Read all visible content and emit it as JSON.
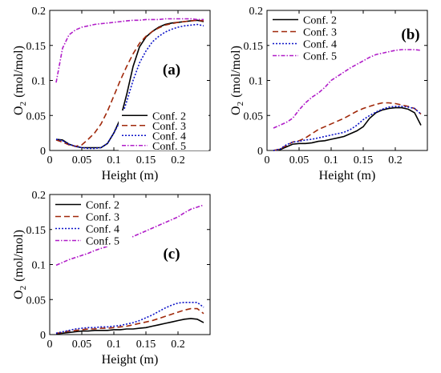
{
  "styles": {
    "Conf. 2": {
      "color": "#000000",
      "dash": ""
    },
    "Conf. 3": {
      "color": "#a0280a",
      "dash": "7,4"
    },
    "Conf. 4": {
      "color": "#0b12c8",
      "dash": "2,2"
    },
    "Conf. 5": {
      "color": "#b01cc8",
      "dash": "5,2,1.5,2"
    }
  },
  "chart_data": [
    {
      "type": "line",
      "panel_label": "(a)",
      "xlabel": "Height (m)",
      "ylabel_main": "O",
      "ylabel_sub": "2",
      "ylabel_unit": "(mol/mol)",
      "xlim": [
        0,
        0.25
      ],
      "ylim": [
        0,
        0.2
      ],
      "xticks": [
        "0",
        "0.05",
        "0.1",
        "0.15",
        "0.2"
      ],
      "yticks": [
        "0",
        "0.05",
        "0.1",
        "0.15",
        "0.2"
      ],
      "legend": "lower-right",
      "series": [
        {
          "name": "Conf. 2",
          "x": [
            0.01,
            0.02,
            0.03,
            0.04,
            0.05,
            0.06,
            0.07,
            0.08,
            0.09,
            0.1,
            0.11,
            0.12,
            0.13,
            0.14,
            0.15,
            0.16,
            0.17,
            0.18,
            0.19,
            0.2,
            0.21,
            0.22,
            0.23,
            0.24
          ],
          "y": [
            0.016,
            0.015,
            0.009,
            0.006,
            0.004,
            0.004,
            0.004,
            0.004,
            0.01,
            0.025,
            0.045,
            0.08,
            0.12,
            0.148,
            0.162,
            0.17,
            0.176,
            0.18,
            0.182,
            0.183,
            0.184,
            0.185,
            0.186,
            0.184
          ]
        },
        {
          "name": "Conf. 3",
          "x": [
            0.01,
            0.02,
            0.03,
            0.04,
            0.05,
            0.06,
            0.07,
            0.08,
            0.09,
            0.1,
            0.11,
            0.12,
            0.13,
            0.14,
            0.15,
            0.16,
            0.17,
            0.18,
            0.19,
            0.2,
            0.21,
            0.22,
            0.23,
            0.24
          ],
          "y": [
            0.015,
            0.012,
            0.008,
            0.006,
            0.008,
            0.016,
            0.025,
            0.038,
            0.056,
            0.078,
            0.1,
            0.12,
            0.138,
            0.153,
            0.163,
            0.17,
            0.175,
            0.179,
            0.181,
            0.183,
            0.184,
            0.185,
            0.186,
            0.185
          ]
        },
        {
          "name": "Conf. 4",
          "x": [
            0.01,
            0.02,
            0.03,
            0.04,
            0.05,
            0.06,
            0.07,
            0.08,
            0.09,
            0.1,
            0.11,
            0.12,
            0.13,
            0.14,
            0.15,
            0.16,
            0.17,
            0.18,
            0.19,
            0.2,
            0.21,
            0.22,
            0.23,
            0.24
          ],
          "y": [
            0.016,
            0.014,
            0.009,
            0.006,
            0.004,
            0.003,
            0.003,
            0.004,
            0.01,
            0.025,
            0.042,
            0.07,
            0.1,
            0.125,
            0.142,
            0.155,
            0.163,
            0.169,
            0.173,
            0.176,
            0.178,
            0.179,
            0.18,
            0.178
          ]
        },
        {
          "name": "Conf. 5",
          "x": [
            0.01,
            0.02,
            0.03,
            0.04,
            0.05,
            0.06,
            0.07,
            0.08,
            0.09,
            0.1,
            0.11,
            0.12,
            0.13,
            0.14,
            0.15,
            0.16,
            0.17,
            0.18,
            0.19,
            0.2,
            0.21,
            0.22,
            0.23,
            0.24
          ],
          "y": [
            0.097,
            0.146,
            0.165,
            0.172,
            0.176,
            0.178,
            0.18,
            0.181,
            0.182,
            0.183,
            0.184,
            0.185,
            0.186,
            0.186,
            0.187,
            0.187,
            0.187,
            0.188,
            0.188,
            0.188,
            0.188,
            0.188,
            0.187,
            0.187
          ]
        }
      ]
    },
    {
      "type": "line",
      "panel_label": "(b)",
      "xlabel": "Height (m)",
      "ylabel_main": "O",
      "ylabel_sub": "2",
      "ylabel_unit": "(mol/mol)",
      "xlim": [
        0,
        0.25
      ],
      "ylim": [
        0,
        0.2
      ],
      "xticks": [
        "0",
        "0.05",
        "0.1",
        "0.15",
        "0.2"
      ],
      "yticks": [
        "0",
        "0.05",
        "0.1",
        "0.15",
        "0.2"
      ],
      "legend": "top-left",
      "series": [
        {
          "name": "Conf. 2",
          "x": [
            0.01,
            0.02,
            0.03,
            0.04,
            0.05,
            0.06,
            0.07,
            0.08,
            0.09,
            0.1,
            0.11,
            0.12,
            0.13,
            0.14,
            0.15,
            0.16,
            0.17,
            0.18,
            0.19,
            0.2,
            0.21,
            0.22,
            0.23,
            0.24
          ],
          "y": [
            0.0,
            0.001,
            0.005,
            0.009,
            0.01,
            0.01,
            0.011,
            0.013,
            0.014,
            0.016,
            0.018,
            0.02,
            0.024,
            0.028,
            0.034,
            0.046,
            0.054,
            0.058,
            0.06,
            0.061,
            0.061,
            0.059,
            0.054,
            0.036
          ]
        },
        {
          "name": "Conf. 3",
          "x": [
            0.01,
            0.02,
            0.03,
            0.04,
            0.05,
            0.06,
            0.07,
            0.08,
            0.09,
            0.1,
            0.11,
            0.12,
            0.13,
            0.14,
            0.15,
            0.16,
            0.17,
            0.18,
            0.19,
            0.2,
            0.21,
            0.22,
            0.23,
            0.24
          ],
          "y": [
            0.0,
            0.002,
            0.007,
            0.012,
            0.014,
            0.018,
            0.024,
            0.03,
            0.034,
            0.038,
            0.042,
            0.046,
            0.051,
            0.056,
            0.06,
            0.063,
            0.066,
            0.068,
            0.068,
            0.067,
            0.065,
            0.063,
            0.06,
            0.052
          ]
        },
        {
          "name": "Conf. 4",
          "x": [
            0.01,
            0.02,
            0.03,
            0.04,
            0.05,
            0.06,
            0.07,
            0.08,
            0.09,
            0.1,
            0.11,
            0.12,
            0.13,
            0.14,
            0.15,
            0.16,
            0.17,
            0.18,
            0.19,
            0.2,
            0.21,
            0.22,
            0.23,
            0.24
          ],
          "y": [
            0.0,
            0.002,
            0.008,
            0.012,
            0.013,
            0.015,
            0.016,
            0.018,
            0.02,
            0.022,
            0.024,
            0.026,
            0.03,
            0.036,
            0.044,
            0.05,
            0.055,
            0.059,
            0.062,
            0.063,
            0.063,
            0.062,
            0.06,
            0.052
          ]
        },
        {
          "name": "Conf. 5",
          "x": [
            0.01,
            0.02,
            0.03,
            0.04,
            0.05,
            0.06,
            0.07,
            0.08,
            0.09,
            0.1,
            0.11,
            0.12,
            0.13,
            0.14,
            0.15,
            0.16,
            0.17,
            0.18,
            0.19,
            0.2,
            0.21,
            0.22,
            0.23,
            0.24
          ],
          "y": [
            0.032,
            0.036,
            0.04,
            0.046,
            0.058,
            0.068,
            0.076,
            0.082,
            0.09,
            0.1,
            0.106,
            0.112,
            0.118,
            0.123,
            0.128,
            0.133,
            0.137,
            0.139,
            0.141,
            0.143,
            0.144,
            0.144,
            0.144,
            0.143
          ]
        }
      ]
    },
    {
      "type": "line",
      "panel_label": "(c)",
      "xlabel": "Height (m)",
      "ylabel_main": "O",
      "ylabel_sub": "2",
      "ylabel_unit": "(mol/mol)",
      "xlim": [
        0,
        0.25
      ],
      "ylim": [
        0,
        0.2
      ],
      "xticks": [
        "0",
        "0.05",
        "0.1",
        "0.15",
        "0.2"
      ],
      "yticks": [
        "0",
        "0.05",
        "0.1",
        "0.15",
        "0.2"
      ],
      "legend": "top-left",
      "series": [
        {
          "name": "Conf. 2",
          "x": [
            0.01,
            0.02,
            0.03,
            0.04,
            0.05,
            0.06,
            0.07,
            0.08,
            0.09,
            0.1,
            0.11,
            0.12,
            0.13,
            0.14,
            0.15,
            0.16,
            0.17,
            0.18,
            0.19,
            0.2,
            0.21,
            0.22,
            0.23,
            0.24
          ],
          "y": [
            0.001,
            0.002,
            0.003,
            0.004,
            0.005,
            0.005,
            0.006,
            0.006,
            0.006,
            0.007,
            0.007,
            0.008,
            0.008,
            0.009,
            0.01,
            0.012,
            0.014,
            0.016,
            0.018,
            0.02,
            0.022,
            0.023,
            0.022,
            0.017
          ]
        },
        {
          "name": "Conf. 3",
          "x": [
            0.01,
            0.02,
            0.03,
            0.04,
            0.05,
            0.06,
            0.07,
            0.08,
            0.09,
            0.1,
            0.11,
            0.12,
            0.13,
            0.14,
            0.15,
            0.16,
            0.17,
            0.18,
            0.19,
            0.2,
            0.21,
            0.22,
            0.23,
            0.24
          ],
          "y": [
            0.002,
            0.003,
            0.005,
            0.006,
            0.007,
            0.008,
            0.008,
            0.009,
            0.009,
            0.01,
            0.011,
            0.012,
            0.014,
            0.016,
            0.018,
            0.02,
            0.023,
            0.026,
            0.029,
            0.032,
            0.035,
            0.037,
            0.037,
            0.03
          ]
        },
        {
          "name": "Conf. 4",
          "x": [
            0.01,
            0.02,
            0.03,
            0.04,
            0.05,
            0.06,
            0.07,
            0.08,
            0.09,
            0.1,
            0.11,
            0.12,
            0.13,
            0.14,
            0.15,
            0.16,
            0.17,
            0.18,
            0.19,
            0.2,
            0.21,
            0.22,
            0.23,
            0.24
          ],
          "y": [
            0.002,
            0.004,
            0.006,
            0.008,
            0.009,
            0.01,
            0.01,
            0.011,
            0.011,
            0.012,
            0.013,
            0.015,
            0.017,
            0.02,
            0.024,
            0.028,
            0.033,
            0.038,
            0.042,
            0.045,
            0.046,
            0.046,
            0.046,
            0.039
          ]
        },
        {
          "name": "Conf. 5",
          "x": [
            0.01,
            0.02,
            0.03,
            0.04,
            0.05,
            0.06,
            0.07,
            0.08,
            0.09,
            0.1,
            0.11,
            0.12,
            0.13,
            0.14,
            0.15,
            0.16,
            0.17,
            0.18,
            0.19,
            0.2,
            0.21,
            0.22,
            0.23,
            0.24
          ],
          "y": [
            0.099,
            0.103,
            0.107,
            0.11,
            0.113,
            0.116,
            0.12,
            0.123,
            0.126,
            0.129,
            0.133,
            0.136,
            0.14,
            0.144,
            0.148,
            0.152,
            0.156,
            0.16,
            0.164,
            0.168,
            0.174,
            0.179,
            0.182,
            0.185
          ]
        }
      ]
    }
  ]
}
